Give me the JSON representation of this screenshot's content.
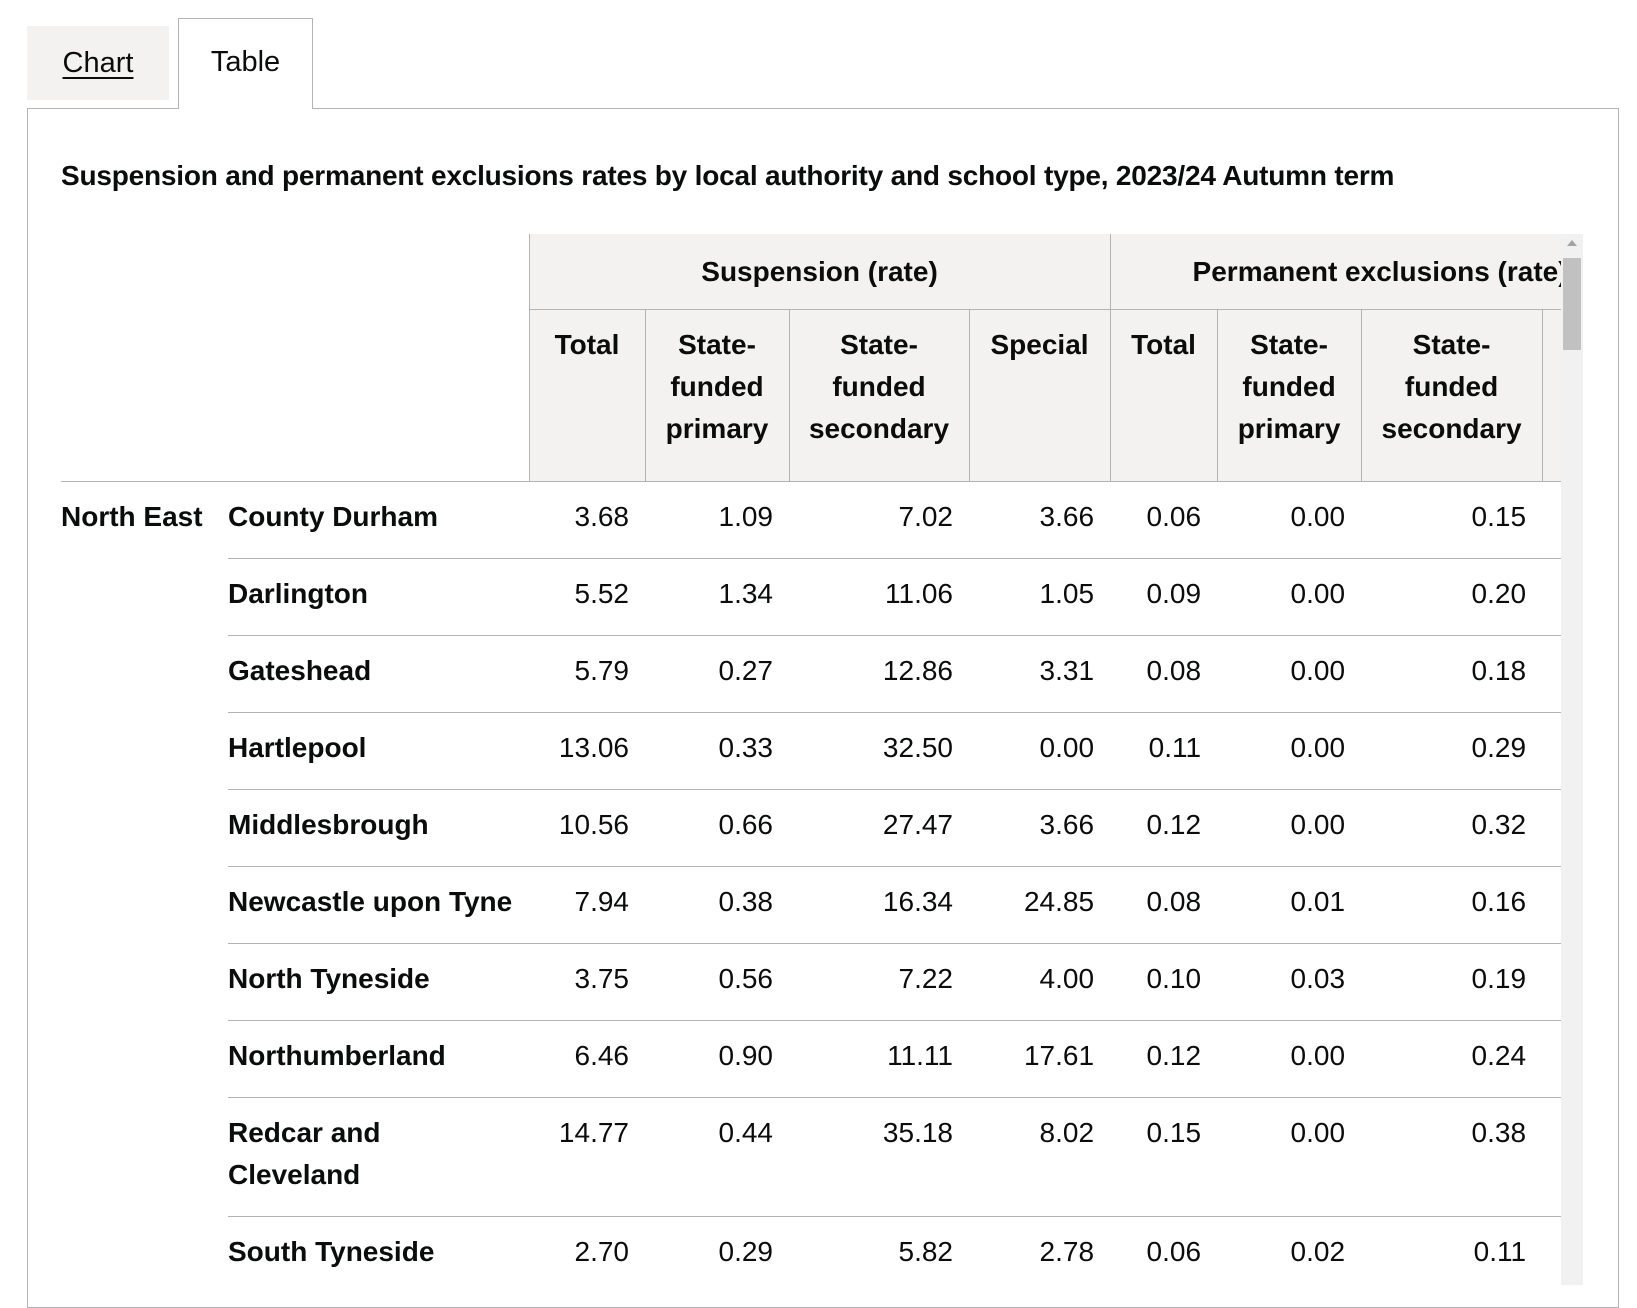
{
  "tabs": [
    {
      "label": "Chart",
      "selected": false
    },
    {
      "label": "Table",
      "selected": true
    }
  ],
  "title": "Suspension and permanent exclusions rates by local authority and school type, 2023/24 Autumn term",
  "table": {
    "group_headers": [
      "Suspension (rate)",
      "Permanent exclusions (rate)"
    ],
    "sub_headers": [
      "Total",
      "State-funded primary",
      "State-funded secondary",
      "Special",
      "Total",
      "State-funded primary",
      "State-funded secondary"
    ],
    "region": "North East",
    "rows": [
      {
        "la": "County Durham",
        "values": [
          "3.68",
          "1.09",
          "7.02",
          "3.66",
          "0.06",
          "0.00",
          "0.15"
        ]
      },
      {
        "la": "Darlington",
        "values": [
          "5.52",
          "1.34",
          "11.06",
          "1.05",
          "0.09",
          "0.00",
          "0.20"
        ]
      },
      {
        "la": "Gateshead",
        "values": [
          "5.79",
          "0.27",
          "12.86",
          "3.31",
          "0.08",
          "0.00",
          "0.18"
        ]
      },
      {
        "la": "Hartlepool",
        "values": [
          "13.06",
          "0.33",
          "32.50",
          "0.00",
          "0.11",
          "0.00",
          "0.29"
        ]
      },
      {
        "la": "Middlesbrough",
        "values": [
          "10.56",
          "0.66",
          "27.47",
          "3.66",
          "0.12",
          "0.00",
          "0.32"
        ]
      },
      {
        "la": "Newcastle upon Tyne",
        "values": [
          "7.94",
          "0.38",
          "16.34",
          "24.85",
          "0.08",
          "0.01",
          "0.16"
        ]
      },
      {
        "la": "North Tyneside",
        "values": [
          "3.75",
          "0.56",
          "7.22",
          "4.00",
          "0.10",
          "0.03",
          "0.19"
        ]
      },
      {
        "la": "Northumberland",
        "values": [
          "6.46",
          "0.90",
          "11.11",
          "17.61",
          "0.12",
          "0.00",
          "0.24"
        ]
      },
      {
        "la": "Redcar and Cleveland",
        "values": [
          "14.77",
          "0.44",
          "35.18",
          "8.02",
          "0.15",
          "0.00",
          "0.38"
        ]
      },
      {
        "la": "South Tyneside",
        "values": [
          "2.70",
          "0.29",
          "5.82",
          "2.78",
          "0.06",
          "0.02",
          "0.11"
        ]
      }
    ]
  },
  "colors": {
    "header_bg": "#f3f2f1",
    "border": "#b1b4b6",
    "text": "#0b0c0c"
  }
}
